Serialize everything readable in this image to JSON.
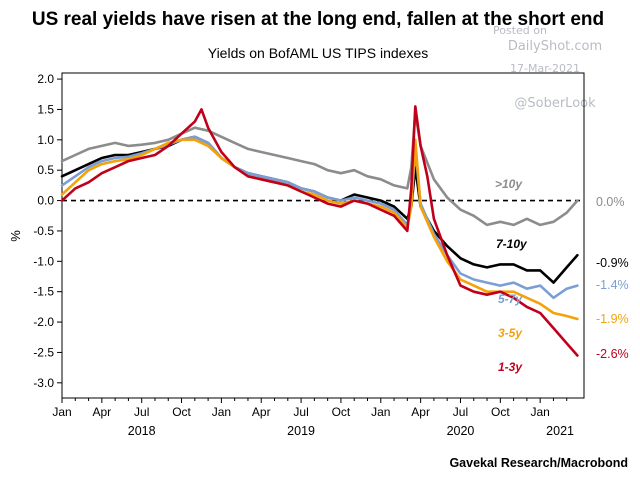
{
  "watermark": {
    "posted": "Posted on",
    "site": "DailyShot.com",
    "date": "17-Mar-2021",
    "handle": "@SoberLook"
  },
  "source": "Gavekal Research/Macrobond",
  "colors": {
    "gt10y": "#8c8c8c",
    "y7_10": "#000000",
    "y5_7": "#7b9fd4",
    "y3_5": "#f5a20a",
    "y1_3": "#c0001a"
  },
  "chart_data": {
    "type": "line",
    "title": "US real yields have risen at the long end, fallen at the short end",
    "subtitle": "Yields on BofAML US TIPS indexes",
    "ylabel": "%",
    "xlabel": "",
    "ylim": [
      -3.25,
      2.1
    ],
    "xlim": [
      0,
      39.3
    ],
    "yticks": [
      "2.0",
      "1.5",
      "1.0",
      "0.5",
      "0.0",
      "-0.5",
      "-1.0",
      "-1.5",
      "-2.0",
      "-2.5",
      "-3.0"
    ],
    "ytick_values": [
      2.0,
      1.5,
      1.0,
      0.5,
      0.0,
      -0.5,
      -1.0,
      -1.5,
      -2.0,
      -2.5,
      -3.0
    ],
    "xticks": [
      "Jan",
      "Apr",
      "Jul",
      "Oct",
      "Jan",
      "Apr",
      "Jul",
      "Oct",
      "Jan",
      "Apr",
      "Jul",
      "Oct",
      "Jan"
    ],
    "xtick_values": [
      0,
      3,
      6,
      9,
      12,
      15,
      18,
      21,
      24,
      27,
      30,
      33,
      36
    ],
    "years": [
      "2018",
      "2019",
      "2020",
      "2021"
    ],
    "year_positions": [
      6,
      18,
      30,
      37.5
    ],
    "zero_line": {
      "value": 0.0,
      "style": "dashed"
    },
    "series": [
      {
        "key": "gt10y",
        "name": ">10y",
        "end_label": "0.0%",
        "x": [
          0,
          1,
          2,
          3,
          4,
          5,
          6,
          7,
          8,
          9,
          10,
          11,
          12,
          13,
          14,
          15,
          16,
          17,
          18,
          19,
          20,
          21,
          22,
          23,
          24,
          25,
          26,
          26.3,
          26.6,
          27,
          28,
          29,
          30,
          31,
          32,
          33,
          34,
          35,
          36,
          37,
          38,
          38.8
        ],
        "y": [
          0.65,
          0.75,
          0.85,
          0.9,
          0.95,
          0.9,
          0.92,
          0.95,
          1.0,
          1.1,
          1.2,
          1.15,
          1.05,
          0.95,
          0.85,
          0.8,
          0.75,
          0.7,
          0.65,
          0.6,
          0.5,
          0.45,
          0.5,
          0.4,
          0.35,
          0.25,
          0.2,
          0.55,
          1.45,
          0.9,
          0.35,
          0.05,
          -0.15,
          -0.25,
          -0.4,
          -0.35,
          -0.4,
          -0.3,
          -0.4,
          -0.35,
          -0.2,
          0.0
        ]
      },
      {
        "key": "y7_10",
        "name": "7-10y",
        "end_label": "-0.9%",
        "x": [
          0,
          1,
          2,
          3,
          4,
          5,
          6,
          7,
          8,
          9,
          10,
          11,
          12,
          13,
          14,
          15,
          16,
          17,
          18,
          19,
          20,
          21,
          22,
          23,
          24,
          25,
          26,
          26.3,
          26.6,
          27,
          28,
          29,
          30,
          31,
          32,
          33,
          34,
          35,
          36,
          37,
          38,
          38.8
        ],
        "y": [
          0.4,
          0.5,
          0.6,
          0.7,
          0.75,
          0.75,
          0.8,
          0.85,
          0.9,
          1.0,
          1.05,
          0.95,
          0.7,
          0.55,
          0.45,
          0.4,
          0.35,
          0.3,
          0.2,
          0.15,
          0.05,
          0.0,
          0.1,
          0.05,
          0.0,
          -0.1,
          -0.3,
          -0.1,
          0.55,
          -0.1,
          -0.5,
          -0.75,
          -0.95,
          -1.05,
          -1.1,
          -1.05,
          -1.05,
          -1.15,
          -1.15,
          -1.35,
          -1.1,
          -0.9
        ]
      },
      {
        "key": "y5_7",
        "name": "5-7y",
        "end_label": "-1.4%",
        "x": [
          0,
          1,
          2,
          3,
          4,
          5,
          6,
          7,
          8,
          9,
          10,
          11,
          12,
          13,
          14,
          15,
          16,
          17,
          18,
          19,
          20,
          21,
          22,
          23,
          24,
          25,
          26,
          26.3,
          26.6,
          27,
          28,
          29,
          30,
          31,
          32,
          33,
          34,
          35,
          36,
          37,
          38,
          38.8
        ],
        "y": [
          0.25,
          0.4,
          0.55,
          0.65,
          0.7,
          0.72,
          0.78,
          0.85,
          0.92,
          1.0,
          1.05,
          0.95,
          0.7,
          0.55,
          0.45,
          0.4,
          0.35,
          0.3,
          0.2,
          0.15,
          0.05,
          0.0,
          0.05,
          0.0,
          -0.05,
          -0.15,
          -0.4,
          -0.05,
          0.85,
          -0.05,
          -0.55,
          -0.9,
          -1.2,
          -1.3,
          -1.35,
          -1.4,
          -1.35,
          -1.45,
          -1.4,
          -1.6,
          -1.45,
          -1.4
        ]
      },
      {
        "key": "y3_5",
        "name": "3-5y",
        "end_label": "-1.9%",
        "x": [
          0,
          1,
          2,
          3,
          4,
          5,
          6,
          7,
          8,
          9,
          10,
          11,
          12,
          13,
          14,
          15,
          16,
          17,
          18,
          19,
          20,
          21,
          22,
          23,
          24,
          25,
          26,
          26.3,
          26.6,
          27,
          28,
          29,
          30,
          31,
          32,
          33,
          34,
          35,
          36,
          37,
          38,
          38.8
        ],
        "y": [
          0.1,
          0.3,
          0.5,
          0.6,
          0.65,
          0.68,
          0.75,
          0.85,
          0.95,
          1.0,
          1.0,
          0.9,
          0.7,
          0.55,
          0.4,
          0.35,
          0.3,
          0.25,
          0.15,
          0.1,
          0.0,
          -0.05,
          0.0,
          -0.05,
          -0.1,
          -0.2,
          -0.45,
          -0.1,
          1.0,
          -0.1,
          -0.6,
          -1.0,
          -1.3,
          -1.4,
          -1.5,
          -1.5,
          -1.5,
          -1.6,
          -1.7,
          -1.85,
          -1.9,
          -1.95
        ]
      },
      {
        "key": "y1_3",
        "name": "1-3y",
        "end_label": "-2.6%",
        "x": [
          0,
          1,
          2,
          3,
          4,
          5,
          6,
          7,
          8,
          9,
          10,
          10.5,
          11,
          12,
          13,
          14,
          15,
          16,
          17,
          18,
          19,
          20,
          21,
          22,
          23,
          24,
          25,
          26,
          26.3,
          26.6,
          27,
          27.5,
          28,
          29,
          30,
          31,
          32,
          33,
          34,
          35,
          36,
          37,
          38,
          38.8
        ],
        "y": [
          0.0,
          0.2,
          0.3,
          0.45,
          0.55,
          0.65,
          0.7,
          0.75,
          0.9,
          1.1,
          1.3,
          1.5,
          1.2,
          0.8,
          0.55,
          0.4,
          0.35,
          0.3,
          0.25,
          0.15,
          0.05,
          -0.05,
          -0.1,
          0.0,
          -0.05,
          -0.15,
          -0.25,
          -0.5,
          0.2,
          1.55,
          0.9,
          0.4,
          -0.3,
          -0.9,
          -1.4,
          -1.5,
          -1.55,
          -1.5,
          -1.6,
          -1.75,
          -1.85,
          -2.1,
          -2.35,
          -2.55
        ]
      }
    ]
  }
}
